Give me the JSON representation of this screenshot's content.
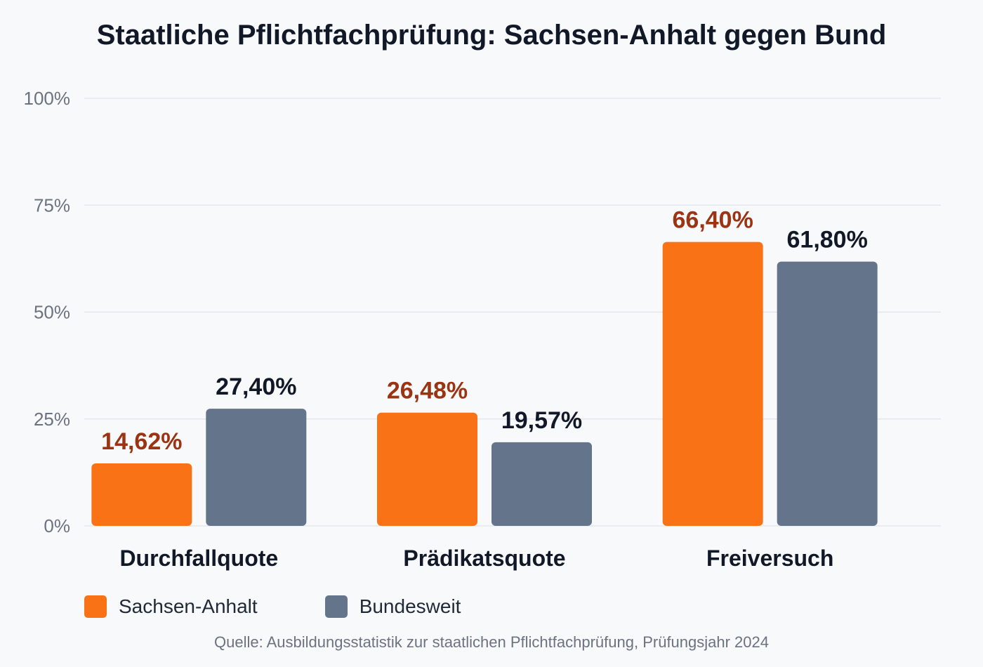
{
  "chart_data": {
    "type": "bar",
    "title": "Staatliche Pflichtfachprüfung: Sachsen-Anhalt gegen Bund",
    "categories": [
      "Durchfallquote",
      "Prädikatsquote",
      "Freiversuch"
    ],
    "series": [
      {
        "name": "Sachsen-Anhalt",
        "values": [
          14.62,
          26.48,
          66.4
        ],
        "labels": [
          "14,62%",
          "26,48%",
          "66,40%"
        ],
        "color": "#f97316",
        "label_color": "#9a3412"
      },
      {
        "name": "Bundesweit",
        "values": [
          27.4,
          19.57,
          61.8
        ],
        "labels": [
          "27,40%",
          "19,57%",
          "61,80%"
        ],
        "color": "#64748b",
        "label_color": "#111827"
      }
    ],
    "ylim": [
      0,
      100
    ],
    "yticks": [
      0,
      25,
      50,
      75,
      100
    ],
    "ytick_labels": [
      "0%",
      "25%",
      "50%",
      "75%",
      "100%"
    ],
    "grid": true,
    "legend_position": "bottom-left",
    "source": "Quelle: Ausbildungsstatistik zur staatlichen Pflichtfachprüfung, Prüfungsjahr 2024"
  }
}
